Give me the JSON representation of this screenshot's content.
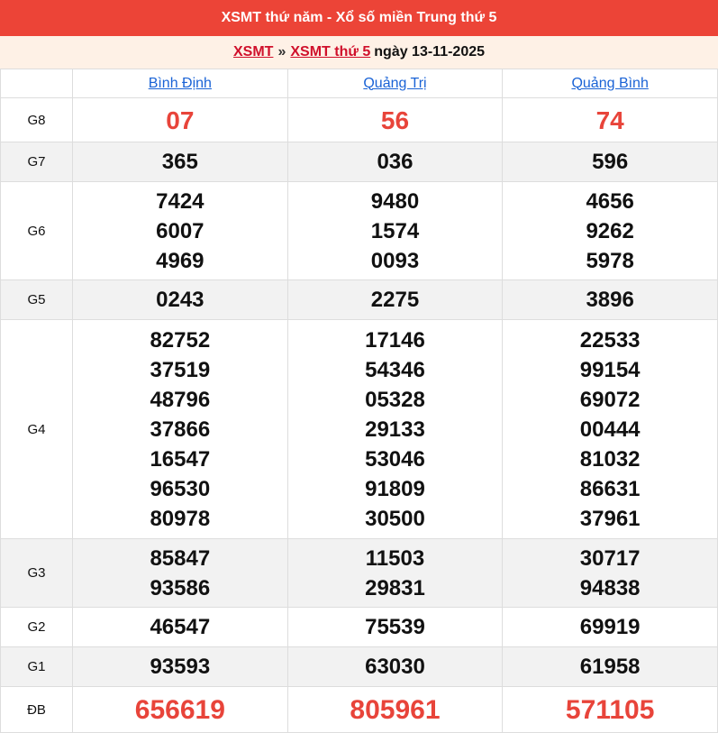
{
  "title": "XSMT thứ năm - Xổ số miền Trung thứ 5",
  "breadcrumb": {
    "link1": "XSMT",
    "sep": "»",
    "link2": "XSMT thứ 5",
    "date": "ngày 13-11-2025"
  },
  "provinces": [
    "Bình Định",
    "Quảng Trị",
    "Quảng Bình"
  ],
  "rows": [
    {
      "label": "G8",
      "values": [
        [
          "07"
        ],
        [
          "56"
        ],
        [
          "74"
        ]
      ]
    },
    {
      "label": "G7",
      "values": [
        [
          "365"
        ],
        [
          "036"
        ],
        [
          "596"
        ]
      ]
    },
    {
      "label": "G6",
      "values": [
        [
          "7424",
          "6007",
          "4969"
        ],
        [
          "9480",
          "1574",
          "0093"
        ],
        [
          "4656",
          "9262",
          "5978"
        ]
      ]
    },
    {
      "label": "G5",
      "values": [
        [
          "0243"
        ],
        [
          "2275"
        ],
        [
          "3896"
        ]
      ]
    },
    {
      "label": "G4",
      "values": [
        [
          "82752",
          "37519",
          "48796",
          "37866",
          "16547",
          "96530",
          "80978"
        ],
        [
          "17146",
          "54346",
          "05328",
          "29133",
          "53046",
          "91809",
          "30500"
        ],
        [
          "22533",
          "99154",
          "69072",
          "00444",
          "81032",
          "86631",
          "37961"
        ]
      ]
    },
    {
      "label": "G3",
      "values": [
        [
          "85847",
          "93586"
        ],
        [
          "11503",
          "29831"
        ],
        [
          "30717",
          "94838"
        ]
      ]
    },
    {
      "label": "G2",
      "values": [
        [
          "46547"
        ],
        [
          "75539"
        ],
        [
          "69919"
        ]
      ]
    },
    {
      "label": "G1",
      "values": [
        [
          "93593"
        ],
        [
          "63030"
        ],
        [
          "61958"
        ]
      ]
    },
    {
      "label": "ĐB",
      "values": [
        [
          "656619"
        ],
        [
          "805961"
        ],
        [
          "571105"
        ]
      ]
    }
  ],
  "colors": {
    "header": "#ec4437",
    "prize_red": "#e8443a",
    "link": "#1a63d6"
  }
}
